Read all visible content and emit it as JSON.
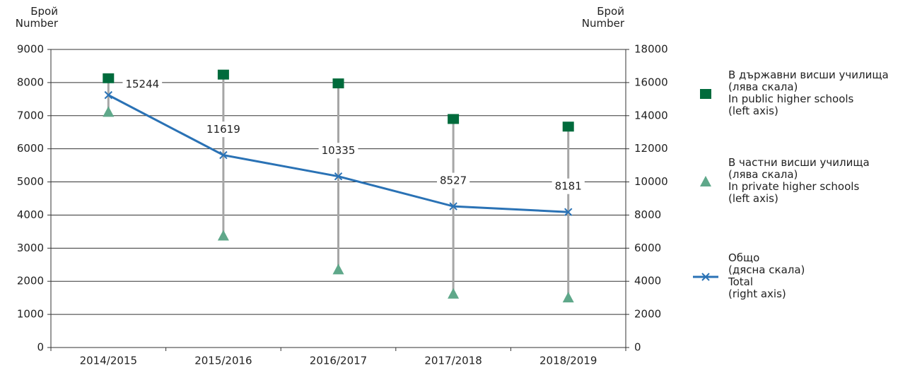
{
  "chart_data": {
    "type": "line",
    "y_label": "Брой\nNumber",
    "y2_label": "Брой\nNumber",
    "categories": [
      "2014/2015",
      "2015/2016",
      "2016/2017",
      "2017/2018",
      "2018/2019"
    ],
    "ylim": [
      0,
      9000
    ],
    "yticks": [
      0,
      1000,
      2000,
      3000,
      4000,
      5000,
      6000,
      7000,
      8000,
      9000
    ],
    "y2lim": [
      0,
      18000
    ],
    "y2ticks": [
      0,
      2000,
      4000,
      6000,
      8000,
      10000,
      12000,
      14000,
      16000,
      18000
    ],
    "grid": true,
    "hi_lo_lines": true,
    "legend": "right",
    "series": [
      {
        "name": "В държавни висши училища\n(лява скала)\nIn public higher schools\n(left axis)",
        "color": "#006b3c",
        "marker": "square",
        "values": [
          8130,
          8240,
          7975,
          6900,
          6670
        ]
      },
      {
        "name": "В частни висши училища\n(лява скала)\nIn private higher schools\n(left axis)",
        "color": "#5fa88a",
        "marker": "triangle",
        "values": [
          7114,
          3379,
          2360,
          1627,
          1511
        ]
      },
      {
        "name": "Общо\n(дясна скала)\nTotal\n(right axis)",
        "color": "#2a72b5",
        "marker": "x",
        "line": true,
        "axis": "y2",
        "values": [
          15244,
          11619,
          10335,
          8527,
          8181
        ]
      }
    ]
  }
}
